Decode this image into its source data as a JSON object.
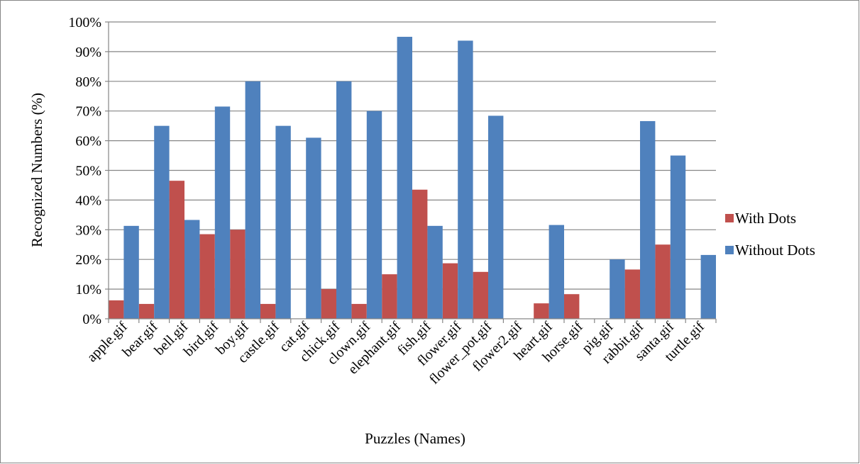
{
  "chart_data": {
    "type": "bar",
    "xlabel": "Puzzles (Names)",
    "ylabel": "Recognized Numbers (%)",
    "ylim": [
      0,
      100
    ],
    "yticks": [
      0,
      10,
      20,
      30,
      40,
      50,
      60,
      70,
      80,
      90,
      100
    ],
    "ytick_suffix": "%",
    "grid": true,
    "legend_position": "right",
    "categories": [
      "apple.gif",
      "bear.gif",
      "bell.gif",
      "bird.gif",
      "boy.gif",
      "castle.gif",
      "cat.gif",
      "chick.gif",
      "clown.gif",
      "elephant.gif",
      "fish.gif",
      "flower.gif",
      "flower_pot.gif",
      "flower2.gif",
      "heart.gif",
      "horse.gif",
      "pig.gif",
      "rabbit.gif",
      "santa.gif",
      "turtle.gif"
    ],
    "series": [
      {
        "name": "With Dots",
        "color": "#c0504d",
        "values": [
          6.2,
          5,
          46.5,
          28.5,
          30,
          5,
          0,
          10,
          5,
          15,
          43.5,
          18.7,
          15.8,
          0,
          5.2,
          8.3,
          0,
          16.6,
          25,
          0
        ]
      },
      {
        "name": "Without Dots",
        "color": "#4f81bd",
        "values": [
          31.3,
          65,
          33.3,
          71.5,
          80,
          65,
          61,
          80,
          70,
          95,
          31.3,
          93.7,
          68.4,
          0,
          31.6,
          0,
          20,
          66.6,
          55,
          21.5
        ]
      }
    ]
  }
}
